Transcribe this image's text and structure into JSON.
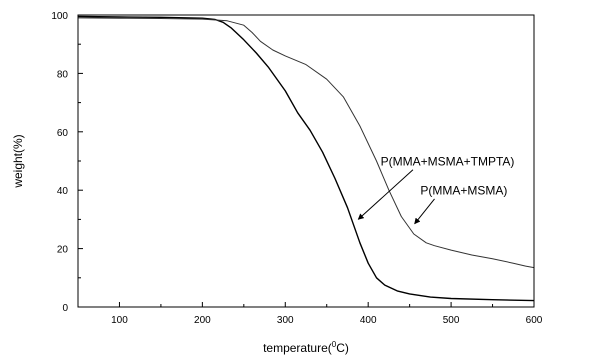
{
  "chart_data": {
    "type": "line",
    "xlabel": "temperature(°C)",
    "xlabel_parts": {
      "before": "temperature(",
      "sup": "0",
      "after": "C)"
    },
    "ylabel": "weight(%)",
    "xlim": [
      50,
      600
    ],
    "ylim": [
      0,
      100
    ],
    "xticks": [
      100,
      200,
      300,
      400,
      500,
      600
    ],
    "yticks": [
      0,
      20,
      40,
      60,
      80,
      100
    ],
    "grid": false,
    "legend": "none",
    "series": [
      {
        "name": "P(MMA+MSMA+TMPTA)",
        "color": "#000000",
        "stroke_width": 1.4,
        "x": [
          50,
          100,
          150,
          200,
          215,
          225,
          235,
          250,
          265,
          280,
          300,
          315,
          330,
          345,
          360,
          375,
          390,
          400,
          410,
          420,
          435,
          450,
          475,
          500,
          550,
          600
        ],
        "y": [
          99.5,
          99.3,
          99.2,
          98.9,
          98.5,
          97.5,
          95.5,
          91.5,
          87,
          82,
          74,
          66.5,
          60.5,
          53,
          44,
          34,
          22,
          15,
          10,
          7.5,
          5.5,
          4.5,
          3.4,
          2.9,
          2.5,
          2.2
        ]
      },
      {
        "name": "P(MMA+MSMA)",
        "color": "#333333",
        "stroke_width": 1,
        "x": [
          50,
          100,
          150,
          200,
          230,
          250,
          260,
          270,
          285,
          300,
          325,
          350,
          370,
          390,
          410,
          425,
          440,
          455,
          470,
          480,
          500,
          525,
          550,
          575,
          590,
          600
        ],
        "y": [
          99,
          98.9,
          98.8,
          98.6,
          98,
          96.5,
          94,
          91,
          88,
          86,
          83,
          78,
          72,
          62,
          50,
          40,
          31,
          25,
          22,
          21,
          19.5,
          17.8,
          16.5,
          15,
          14,
          13.5
        ]
      }
    ],
    "annotations": [
      {
        "text": "P(MMA+MSMA+TMPTA)",
        "text_x": 415,
        "text_y": 48.5,
        "arrow_from_x": 454,
        "arrow_from_y": 47,
        "arrow_to_x": 388,
        "arrow_to_y": 30
      },
      {
        "text": "P(MMA+MSMA)",
        "text_x": 463,
        "text_y": 38.5,
        "arrow_from_x": 480,
        "arrow_from_y": 37,
        "arrow_to_x": 456,
        "arrow_to_y": 28.5
      }
    ]
  }
}
